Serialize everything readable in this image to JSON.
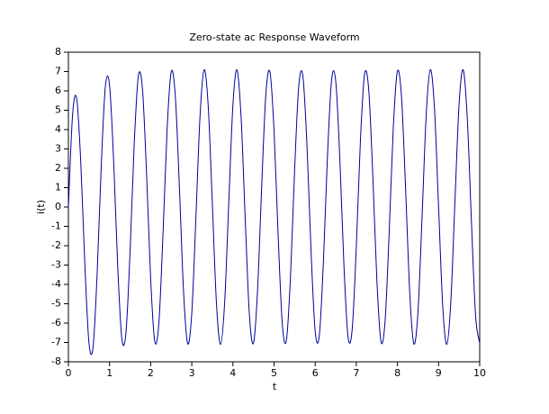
{
  "chart_data": {
    "type": "line",
    "title": "Zero-state ac Response Waveform",
    "xlabel": "t",
    "ylabel": "i(t)",
    "x": [
      0,
      0.1,
      0.2,
      0.3,
      0.4,
      0.5,
      0.6,
      0.7,
      0.8,
      0.9,
      1,
      1.1,
      1.2,
      1.3,
      1.4,
      1.5,
      1.6,
      1.7,
      1.8,
      1.9,
      2,
      2.1,
      2.2,
      2.3,
      2.4,
      2.5,
      2.6,
      2.7,
      2.8,
      2.9,
      3,
      3.1,
      3.2,
      3.3,
      3.4,
      3.5,
      3.6,
      3.7,
      3.8,
      3.9,
      4,
      4.1,
      4.2,
      4.3,
      4.4,
      4.5,
      4.6,
      4.7,
      4.8,
      4.9,
      5,
      5.1,
      5.2,
      5.3,
      5.4,
      5.5,
      5.6,
      5.7,
      5.8,
      5.9,
      6,
      6.1,
      6.2,
      6.3,
      6.4,
      6.5,
      6.6,
      6.7,
      6.8,
      6.9,
      7,
      7.1,
      7.2,
      7.3,
      7.4,
      7.5,
      7.6,
      7.7,
      7.8,
      7.9,
      8,
      8.1,
      8.2,
      8.3,
      8.4,
      8.5,
      8.6,
      8.7,
      8.8,
      8.9,
      9,
      9.1,
      9.2,
      9.3,
      9.4,
      9.5,
      9.6,
      9.7,
      9.8,
      9.9,
      10
    ],
    "series": [
      {
        "color": "#00009a",
        "values": [
          0,
          4.71,
          5.62,
          2.35,
          -2.98,
          -7.02,
          -7.23,
          -3.39,
          2.21,
          6.25,
          6.3,
          2.38,
          -3.12,
          -6.82,
          -6.48,
          -2.27,
          3.25,
          6.76,
          6.12,
          1.74,
          -3.72,
          -6.95,
          -5.98,
          -1.4,
          4.02,
          6.99,
          5.71,
          0.96,
          -4.38,
          -7.06,
          -5.47,
          -0.56,
          4.69,
          7.09,
          5.19,
          0.15,
          -4.99,
          -7.1,
          -4.9,
          0.27,
          5.28,
          7.08,
          4.59,
          -0.68,
          -5.55,
          -7.04,
          -4.27,
          1.1,
          5.8,
          6.98,
          3.93,
          -1.5,
          -6.02,
          -6.89,
          -3.58,
          1.91,
          6.23,
          6.78,
          3.22,
          -2.3,
          -6.42,
          -6.65,
          -2.84,
          2.69,
          6.59,
          6.49,
          2.46,
          -3.07,
          -6.73,
          -6.31,
          -2.06,
          3.44,
          6.85,
          6.11,
          1.66,
          -3.79,
          -6.95,
          -5.89,
          -1.26,
          4.14,
          7.02,
          5.65,
          0.85,
          -4.47,
          -7.07,
          -5.39,
          -0.44,
          4.78,
          7.1,
          5.11,
          0.02,
          -5.08,
          -7.1,
          -4.81,
          0.4,
          5.36,
          7.08,
          4.5,
          -0.81,
          -5.62,
          -7.03
        ]
      }
    ],
    "xlim": [
      0,
      10
    ],
    "ylim": [
      -8,
      8
    ],
    "xticks": [
      0,
      1,
      2,
      3,
      4,
      5,
      6,
      7,
      8,
      9,
      10
    ],
    "yticks": [
      -8,
      -7,
      -6,
      -5,
      -4,
      -3,
      -2,
      -1,
      0,
      1,
      2,
      3,
      4,
      5,
      6,
      7,
      8
    ]
  }
}
